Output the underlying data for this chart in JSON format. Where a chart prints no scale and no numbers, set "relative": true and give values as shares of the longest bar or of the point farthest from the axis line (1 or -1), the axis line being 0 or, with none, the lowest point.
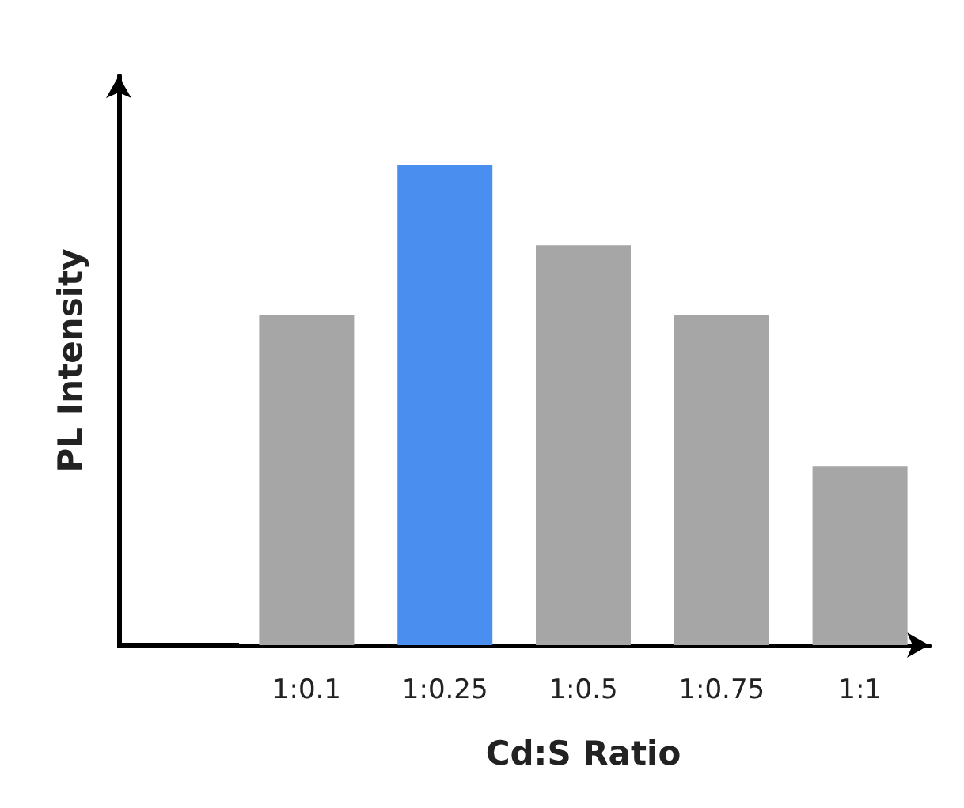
{
  "chart_data": {
    "type": "bar",
    "relative": true,
    "xlabel": "Cd:S Ratio",
    "ylabel": "PL Intensity",
    "categories": [
      "1:0.1",
      "1:0.25",
      "1:0.5",
      "1:0.75",
      "1:1"
    ],
    "values": [
      0.688,
      1,
      0.833,
      0.688,
      0.372
    ],
    "colors": [
      "#a6a6a6",
      "#4a8ef0",
      "#a6a6a6",
      "#a6a6a6",
      "#a6a6a6"
    ],
    "grid": false
  }
}
